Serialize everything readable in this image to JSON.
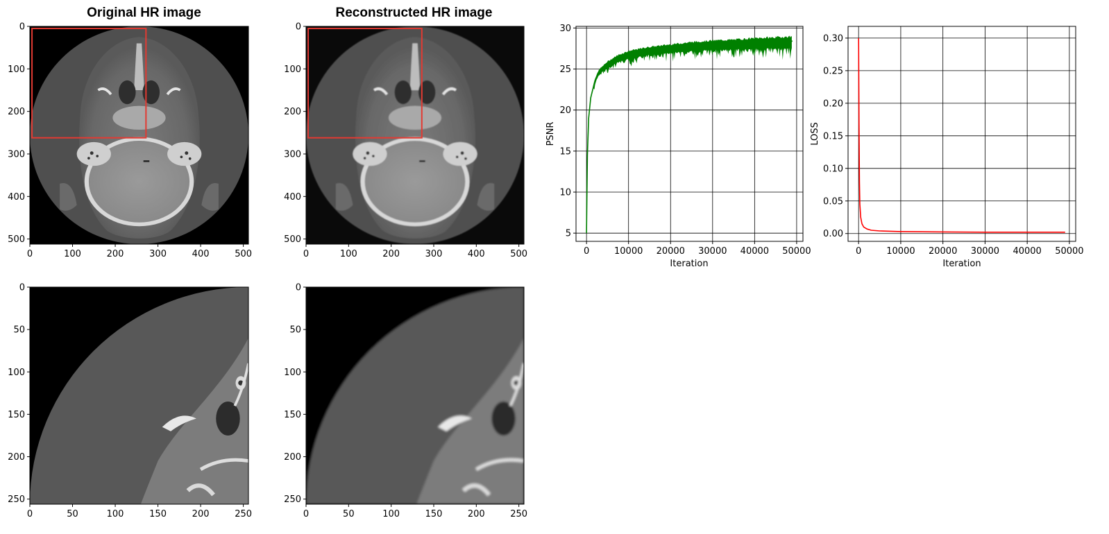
{
  "figure": {
    "original_title": "Original HR image",
    "reconstructed_title": "Reconstructed HR image"
  },
  "chart_data": [
    {
      "type": "image",
      "title": "Original HR image",
      "content": "axial head CT slice, full 512x512 view",
      "xlim": [
        0,
        512
      ],
      "ylim": [
        512,
        0
      ],
      "xticks": [
        0,
        100,
        200,
        300,
        400,
        500
      ],
      "yticks": [
        0,
        100,
        200,
        300,
        400,
        500
      ],
      "annotation": {
        "shape": "rectangle",
        "color": "#e33a32",
        "x_range": [
          5,
          272
        ],
        "y_range": [
          5,
          262
        ]
      }
    },
    {
      "type": "image",
      "title": "Reconstructed HR image",
      "content": "axial head CT slice reconstruction, full 512x512 view",
      "xlim": [
        0,
        512
      ],
      "ylim": [
        512,
        0
      ],
      "xticks": [
        0,
        100,
        200,
        300,
        400,
        500
      ],
      "yticks": [
        0,
        100,
        200,
        300,
        400,
        500
      ],
      "annotation": {
        "shape": "rectangle",
        "color": "#e33a32",
        "x_range": [
          5,
          272
        ],
        "y_range": [
          5,
          262
        ]
      }
    },
    {
      "type": "line",
      "xlabel": "Iteration",
      "ylabel": "PSNR",
      "color": "#008000",
      "xlim": [
        -2500,
        51500
      ],
      "ylim": [
        4,
        30.2
      ],
      "xticks": [
        0,
        10000,
        20000,
        30000,
        40000,
        50000
      ],
      "yticks": [
        5,
        10,
        15,
        20,
        25,
        30
      ],
      "grid": true,
      "series": [
        {
          "x": [
            0,
            200,
            500,
            1000,
            2000,
            3000,
            5000,
            7500,
            10000,
            15000,
            20000,
            25000,
            30000,
            35000,
            40000,
            45000,
            49000
          ],
          "y": [
            5.0,
            14.5,
            19.0,
            21.5,
            23.6,
            24.7,
            25.6,
            26.3,
            26.8,
            27.3,
            27.6,
            27.8,
            28.0,
            28.1,
            28.2,
            28.3,
            28.4
          ],
          "noise_low": [
            0,
            0,
            0,
            0.6,
            0.9,
            1.1,
            1.3,
            1.5,
            1.7,
            1.8,
            1.9,
            2.0,
            2.1,
            2.2,
            2.3,
            2.4,
            2.5
          ],
          "noise_high": [
            0,
            0,
            0,
            0.2,
            0.3,
            0.3,
            0.4,
            0.5,
            0.5,
            0.5,
            0.5,
            0.6,
            0.6,
            0.6,
            0.7,
            0.7,
            0.7
          ]
        }
      ]
    },
    {
      "type": "line",
      "xlabel": "Iteration",
      "ylabel": "LOSS",
      "color": "#ff0000",
      "xlim": [
        -2500,
        51500
      ],
      "ylim": [
        -0.012,
        0.318
      ],
      "xticks": [
        0,
        10000,
        20000,
        30000,
        40000,
        50000
      ],
      "yticks": [
        0.0,
        0.05,
        0.1,
        0.15,
        0.2,
        0.25,
        0.3
      ],
      "ytick_labels": [
        "0.00",
        "0.05",
        "0.10",
        "0.15",
        "0.20",
        "0.25",
        "0.30"
      ],
      "grid": true,
      "series": [
        {
          "x": [
            0,
            100,
            200,
            300,
            500,
            800,
            1200,
            2000,
            3000,
            5000,
            10000,
            20000,
            30000,
            40000,
            49000
          ],
          "y": [
            0.3,
            0.17,
            0.08,
            0.045,
            0.025,
            0.015,
            0.01,
            0.007,
            0.005,
            0.004,
            0.003,
            0.0025,
            0.002,
            0.002,
            0.002
          ]
        }
      ]
    },
    {
      "type": "image",
      "title": "",
      "content": "zoomed crop of original HR image (red-box region)",
      "xlim": [
        0,
        256
      ],
      "ylim": [
        256,
        0
      ],
      "xticks": [
        0,
        50,
        100,
        150,
        200,
        250
      ],
      "yticks": [
        0,
        50,
        100,
        150,
        200,
        250
      ]
    },
    {
      "type": "image",
      "title": "",
      "content": "zoomed crop of reconstructed HR image (red-box region)",
      "xlim": [
        0,
        256
      ],
      "ylim": [
        256,
        0
      ],
      "xticks": [
        0,
        50,
        100,
        150,
        200,
        250
      ],
      "yticks": [
        0,
        50,
        100,
        150,
        200,
        250
      ]
    }
  ]
}
